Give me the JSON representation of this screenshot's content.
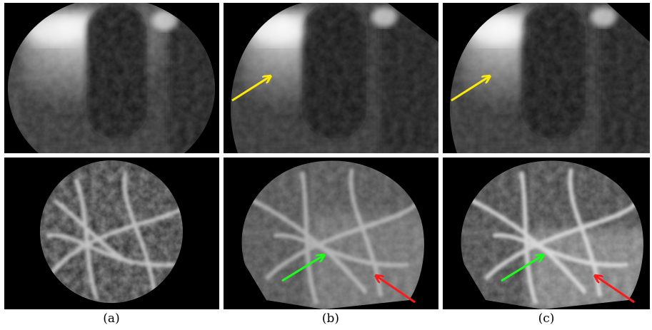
{
  "figure": {
    "captions": [
      "(a)",
      "(b)",
      "(c)"
    ]
  },
  "arrows": {
    "yellow_color": "#ffea00",
    "green_color": "#19ff19",
    "red_color": "#ff1a1a"
  },
  "colors": {
    "background": "#000000",
    "tissue_bright": "#e8e8e8",
    "tissue_dim": "#555555"
  }
}
